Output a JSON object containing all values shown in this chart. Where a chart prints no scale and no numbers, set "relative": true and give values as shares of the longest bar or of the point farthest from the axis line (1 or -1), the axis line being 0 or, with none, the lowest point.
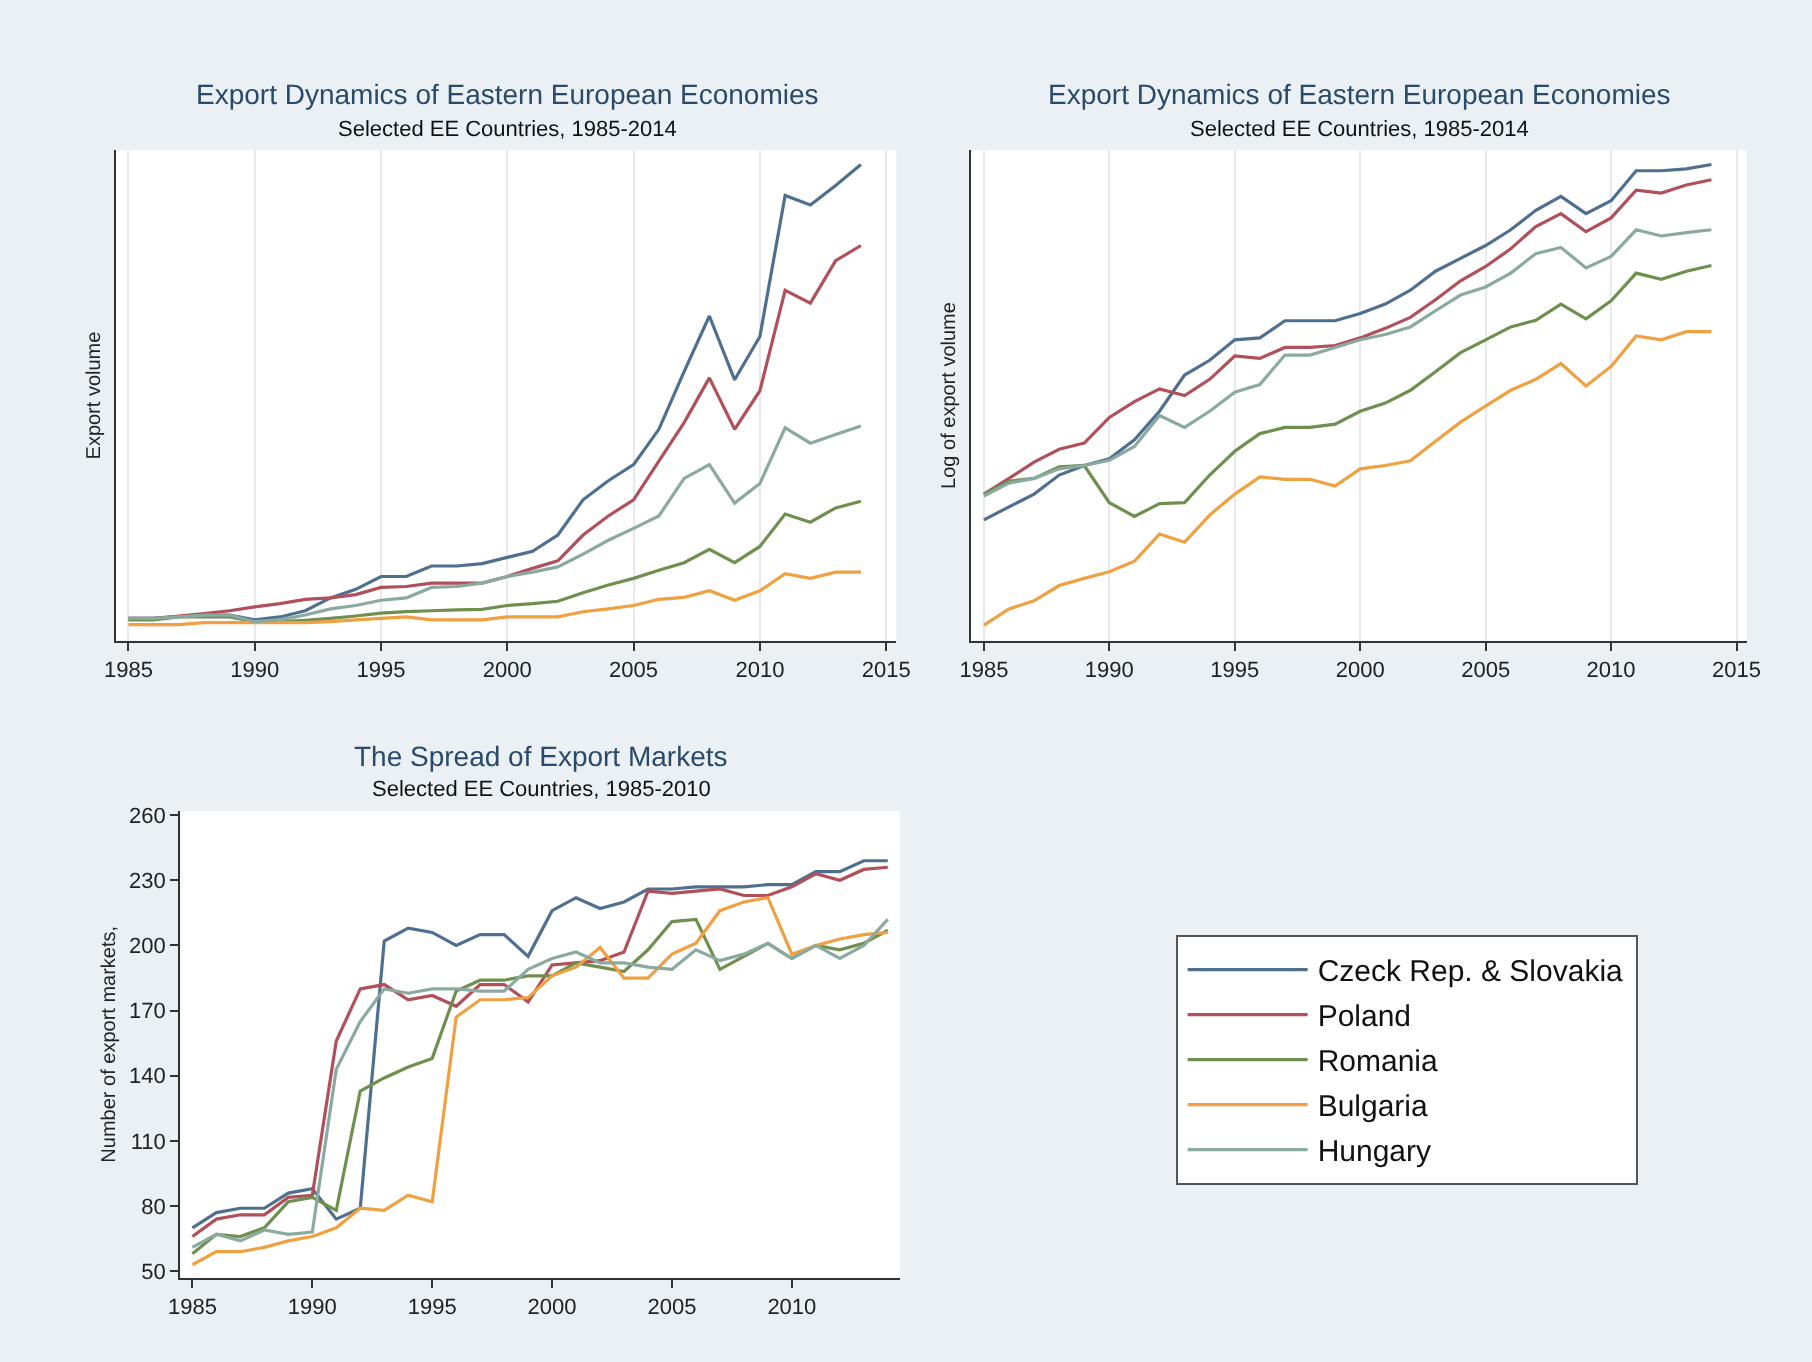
{
  "chart_data": [
    {
      "type": "line",
      "title": "Export Dynamics of Eastern European Economies",
      "subtitle": "Selected EE Countries, 1985-2014",
      "ylabel": "Export volume",
      "relative": true,
      "grid": "x",
      "x": [
        1985,
        1986,
        1987,
        1988,
        1989,
        1990,
        1991,
        1992,
        1993,
        1994,
        1995,
        1996,
        1997,
        1998,
        1999,
        2000,
        2001,
        2002,
        2003,
        2004,
        2005,
        2006,
        2007,
        2008,
        2009,
        2010,
        2011,
        2012,
        2013,
        2014
      ],
      "xlim": [
        1984.5,
        2015.4
      ],
      "xticks": [
        1985,
        1990,
        1995,
        2000,
        2005,
        2010,
        2015
      ],
      "series": [
        {
          "color": "#4f6f8f",
          "values": [
            0.047,
            0.047,
            0.051,
            0.054,
            0.054,
            0.044,
            0.05,
            0.063,
            0.09,
            0.108,
            0.135,
            0.135,
            0.157,
            0.157,
            0.162,
            0.175,
            0.188,
            0.222,
            0.296,
            0.336,
            0.37,
            0.444,
            0.565,
            0.682,
            0.548,
            0.639,
            0.935,
            0.915,
            0.956,
            1.0
          ]
        },
        {
          "color": "#b0505a",
          "values": [
            0.047,
            0.047,
            0.052,
            0.057,
            0.063,
            0.071,
            0.078,
            0.087,
            0.09,
            0.097,
            0.112,
            0.114,
            0.121,
            0.121,
            0.121,
            0.135,
            0.152,
            0.168,
            0.222,
            0.262,
            0.296,
            0.377,
            0.458,
            0.552,
            0.444,
            0.525,
            0.736,
            0.709,
            0.798,
            0.83
          ]
        },
        {
          "color": "#6f8f4f",
          "values": [
            0.044,
            0.044,
            0.05,
            0.05,
            0.05,
            0.04,
            0.04,
            0.043,
            0.047,
            0.052,
            0.058,
            0.061,
            0.063,
            0.065,
            0.066,
            0.074,
            0.078,
            0.083,
            0.101,
            0.117,
            0.131,
            0.148,
            0.164,
            0.192,
            0.164,
            0.198,
            0.266,
            0.249,
            0.279,
            0.293
          ]
        },
        {
          "color": "#f0a040",
          "values": [
            0.034,
            0.034,
            0.034,
            0.038,
            0.038,
            0.038,
            0.038,
            0.038,
            0.04,
            0.044,
            0.047,
            0.05,
            0.044,
            0.044,
            0.044,
            0.05,
            0.05,
            0.05,
            0.061,
            0.067,
            0.074,
            0.087,
            0.091,
            0.105,
            0.085,
            0.105,
            0.141,
            0.131,
            0.144,
            0.144
          ]
        },
        {
          "color": "#8aaaa0",
          "values": [
            0.047,
            0.047,
            0.05,
            0.054,
            0.054,
            0.04,
            0.044,
            0.054,
            0.067,
            0.074,
            0.085,
            0.09,
            0.112,
            0.114,
            0.121,
            0.135,
            0.144,
            0.155,
            0.182,
            0.211,
            0.236,
            0.262,
            0.341,
            0.37,
            0.289,
            0.33,
            0.447,
            0.415,
            0.433,
            0.451
          ]
        }
      ]
    },
    {
      "type": "line",
      "title": "Export Dynamics of Eastern European Economies",
      "subtitle": "Selected EE Countries, 1985-2014",
      "ylabel": "Log of export volume",
      "relative": true,
      "grid": "x",
      "x": [
        1985,
        1986,
        1987,
        1988,
        1989,
        1990,
        1991,
        1992,
        1993,
        1994,
        1995,
        1996,
        1997,
        1998,
        1999,
        2000,
        2001,
        2002,
        2003,
        2004,
        2005,
        2006,
        2007,
        2008,
        2009,
        2010,
        2011,
        2012,
        2013,
        2014
      ],
      "xlim": [
        1984.5,
        2015.4
      ],
      "xticks": [
        1985,
        1990,
        1995,
        2000,
        2005,
        2010,
        2015
      ],
      "series": [
        {
          "color": "#4f6f8f",
          "values": [
            0.254,
            0.281,
            0.308,
            0.348,
            0.368,
            0.382,
            0.422,
            0.482,
            0.558,
            0.589,
            0.632,
            0.636,
            0.672,
            0.672,
            0.672,
            0.687,
            0.707,
            0.736,
            0.776,
            0.803,
            0.83,
            0.863,
            0.904,
            0.933,
            0.897,
            0.924,
            0.987,
            0.987,
            0.991,
            1.0
          ]
        },
        {
          "color": "#b0505a",
          "values": [
            0.308,
            0.341,
            0.375,
            0.402,
            0.415,
            0.469,
            0.502,
            0.529,
            0.515,
            0.549,
            0.598,
            0.593,
            0.616,
            0.616,
            0.62,
            0.636,
            0.656,
            0.679,
            0.716,
            0.756,
            0.786,
            0.823,
            0.87,
            0.897,
            0.859,
            0.888,
            0.946,
            0.94,
            0.957,
            0.968
          ]
        },
        {
          "color": "#6f8f4f",
          "values": [
            0.308,
            0.335,
            0.341,
            0.365,
            0.368,
            0.29,
            0.261,
            0.288,
            0.29,
            0.348,
            0.398,
            0.435,
            0.448,
            0.448,
            0.455,
            0.482,
            0.499,
            0.526,
            0.565,
            0.605,
            0.632,
            0.659,
            0.673,
            0.707,
            0.676,
            0.714,
            0.772,
            0.759,
            0.776,
            0.788
          ]
        },
        {
          "color": "#f0a040",
          "values": [
            0.033,
            0.067,
            0.084,
            0.116,
            0.131,
            0.145,
            0.167,
            0.224,
            0.207,
            0.264,
            0.308,
            0.344,
            0.339,
            0.339,
            0.325,
            0.361,
            0.368,
            0.378,
            0.419,
            0.459,
            0.493,
            0.526,
            0.549,
            0.582,
            0.535,
            0.576,
            0.64,
            0.632,
            0.649,
            0.649
          ]
        },
        {
          "color": "#8aaaa0",
          "values": [
            0.304,
            0.331,
            0.341,
            0.361,
            0.368,
            0.379,
            0.408,
            0.473,
            0.448,
            0.482,
            0.522,
            0.538,
            0.6,
            0.6,
            0.616,
            0.632,
            0.643,
            0.659,
            0.693,
            0.726,
            0.743,
            0.772,
            0.813,
            0.826,
            0.783,
            0.807,
            0.863,
            0.85,
            0.857,
            0.863
          ]
        }
      ]
    },
    {
      "type": "line",
      "title": "The Spread of Export Markets",
      "subtitle": "Selected EE Countries, 1985-2010",
      "ylabel": "Number of export markets,",
      "legend": "right",
      "x": [
        1985,
        1986,
        1987,
        1988,
        1989,
        1990,
        1991,
        1992,
        1993,
        1994,
        1995,
        1996,
        1997,
        1998,
        1999,
        2000,
        2001,
        2002,
        2003,
        2004,
        2005,
        2006,
        2007,
        2008,
        2009,
        2010,
        2011,
        2012,
        2013,
        2014
      ],
      "xlim": [
        1984.5,
        2014.5
      ],
      "xticks": [
        1985,
        1990,
        1995,
        2000,
        2005,
        2010
      ],
      "ylim": [
        47,
        262
      ],
      "yticks": [
        50,
        80,
        110,
        140,
        170,
        200,
        230,
        260
      ],
      "series": [
        {
          "name": "Czeck Rep. & Slovakia",
          "color": "#4f6f8f",
          "values": [
            70,
            77,
            79,
            79,
            86,
            88,
            74,
            79,
            202,
            208,
            206,
            200,
            205,
            205,
            195,
            216,
            222,
            217,
            220,
            226,
            226,
            227,
            227,
            227,
            228,
            228,
            234,
            234,
            239,
            239
          ]
        },
        {
          "name": "Poland",
          "color": "#b0505a",
          "values": [
            66,
            74,
            76,
            76,
            84,
            85,
            156,
            180,
            182,
            175,
            177,
            172,
            182,
            182,
            174,
            191,
            192,
            193,
            197,
            225,
            224,
            225,
            226,
            223,
            223,
            227,
            233,
            230,
            235,
            236
          ]
        },
        {
          "name": "Romania",
          "color": "#6f8f4f",
          "values": [
            58,
            67,
            66,
            70,
            82,
            84,
            78,
            133,
            139,
            144,
            148,
            179,
            184,
            184,
            186,
            186,
            192,
            190,
            188,
            198,
            211,
            212,
            189,
            195,
            201,
            194,
            200,
            198,
            201,
            207
          ]
        },
        {
          "name": "Bulgaria",
          "color": "#f0a040",
          "values": [
            53,
            59,
            59,
            61,
            64,
            66,
            70,
            79,
            78,
            85,
            82,
            167,
            175,
            175,
            176,
            186,
            190,
            199,
            185,
            185,
            196,
            201,
            216,
            220,
            222,
            196,
            200,
            203,
            205,
            206
          ]
        },
        {
          "name": "Hungary",
          "color": "#8aaaa0",
          "values": [
            61,
            67,
            64,
            69,
            67,
            68,
            143,
            165,
            180,
            178,
            180,
            180,
            179,
            179,
            189,
            194,
            197,
            192,
            192,
            190,
            189,
            198,
            193,
            196,
            201,
            194,
            200,
            194,
            200,
            212
          ]
        }
      ]
    }
  ]
}
